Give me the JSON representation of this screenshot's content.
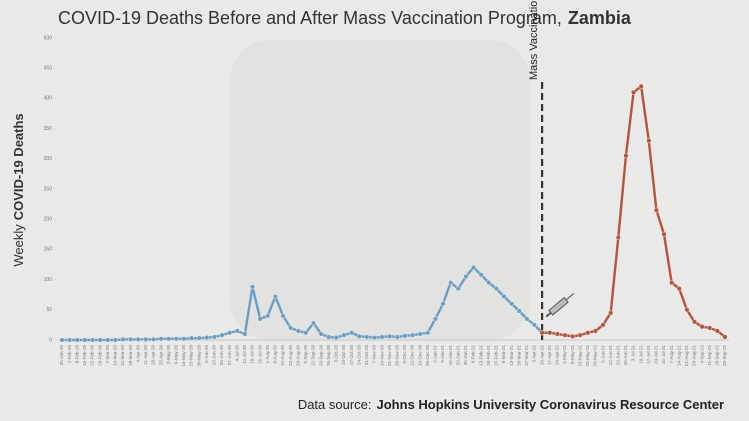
{
  "chart_data": {
    "type": "line",
    "title": "COVID-19 Deaths Before and After Mass Vaccination Program,",
    "title_emphasis": "Zambia",
    "y_label": "Weekly",
    "y_label_emphasis": "COVID-19 Deaths",
    "source": "Data source:",
    "source_emphasis": "Johns Hopkins University Coronavirus Resource Center",
    "annotation": {
      "text": "Mass Vaccination Begins",
      "x": "10-Apr-21"
    },
    "categories": [
      "25-Jan-20",
      "1-Feb-20",
      "8-Feb-20",
      "15-Feb-20",
      "22-Feb-20",
      "29-Feb-20",
      "7-Mar-20",
      "14-Mar-20",
      "21-Mar-20",
      "28-Mar-20",
      "4-Apr-20",
      "11-Apr-20",
      "18-Apr-20",
      "25-Apr-20",
      "2-May-20",
      "9-May-20",
      "16-May-20",
      "23-May-20",
      "30-May-20",
      "6-Jun-20",
      "13-Jun-20",
      "20-Jun-20",
      "27-Jun-20",
      "4-Jul-20",
      "11-Jul-20",
      "18-Jul-20",
      "25-Jul-20",
      "1-Aug-20",
      "8-Aug-20",
      "15-Aug-20",
      "22-Aug-20",
      "29-Aug-20",
      "5-Sep-20",
      "12-Sep-20",
      "19-Sep-20",
      "26-Sep-20",
      "3-Oct-20",
      "10-Oct-20",
      "17-Oct-20",
      "24-Oct-20",
      "31-Oct-20",
      "7-Nov-20",
      "14-Nov-20",
      "21-Nov-20",
      "28-Nov-20",
      "5-Dec-20",
      "12-Dec-20",
      "19-Dec-20",
      "26-Dec-20",
      "2-Jan-21",
      "9-Jan-21",
      "16-Jan-21",
      "23-Jan-21",
      "30-Jan-21",
      "6-Feb-21",
      "13-Feb-21",
      "20-Feb-21",
      "27-Feb-21",
      "6-Mar-21",
      "13-Mar-21",
      "20-Mar-21",
      "27-Mar-21",
      "3-Apr-21",
      "10-Apr-21",
      "17-Apr-21",
      "24-Apr-21",
      "1-May-21",
      "8-May-21",
      "15-May-21",
      "22-May-21",
      "29-May-21",
      "5-Jun-21",
      "12-Jun-21",
      "19-Jun-21",
      "26-Jun-21",
      "3-Jul-21",
      "10-Jul-21",
      "17-Jul-21",
      "24-Jul-21",
      "31-Jul-21",
      "7-Aug-21",
      "14-Aug-21",
      "21-Aug-21",
      "28-Aug-21",
      "4-Sep-21",
      "11-Sep-21",
      "18-Sep-21",
      "25-Sep-21"
    ],
    "series": [
      {
        "color": "#6a9ec4",
        "values": [
          0,
          0,
          0,
          0,
          0,
          0,
          0,
          0,
          1,
          1,
          1,
          1,
          1,
          2,
          2,
          2,
          2,
          3,
          3,
          4,
          5,
          8,
          12,
          15,
          10,
          88,
          35,
          40,
          72,
          40,
          20,
          15,
          12,
          28,
          10,
          5,
          4,
          8,
          12,
          6,
          5,
          4,
          5,
          6,
          5,
          7,
          8,
          10,
          12,
          35,
          60,
          95,
          85,
          105,
          120,
          108,
          95,
          85,
          72,
          60,
          48,
          35,
          25,
          12,
          null,
          null,
          null,
          null,
          null,
          null,
          null,
          null,
          null,
          null,
          null,
          null,
          null,
          null,
          null,
          null,
          null,
          null,
          null,
          null,
          null,
          null,
          null,
          null
        ]
      },
      {
        "color": "#b5533f",
        "values": [
          null,
          null,
          null,
          null,
          null,
          null,
          null,
          null,
          null,
          null,
          null,
          null,
          null,
          null,
          null,
          null,
          null,
          null,
          null,
          null,
          null,
          null,
          null,
          null,
          null,
          null,
          null,
          null,
          null,
          null,
          null,
          null,
          null,
          null,
          null,
          null,
          null,
          null,
          null,
          null,
          null,
          null,
          null,
          null,
          null,
          null,
          null,
          null,
          null,
          null,
          null,
          null,
          null,
          null,
          null,
          null,
          null,
          null,
          null,
          null,
          null,
          null,
          null,
          12,
          12,
          10,
          8,
          6,
          8,
          12,
          15,
          25,
          45,
          170,
          305,
          410,
          420,
          330,
          215,
          175,
          95,
          85,
          50,
          30,
          22,
          20,
          15,
          5
        ]
      }
    ],
    "ylim": [
      0,
      500
    ],
    "yticks": [
      0,
      50,
      100,
      150,
      200,
      250,
      300,
      350,
      400,
      450,
      500
    ],
    "grid": false
  }
}
